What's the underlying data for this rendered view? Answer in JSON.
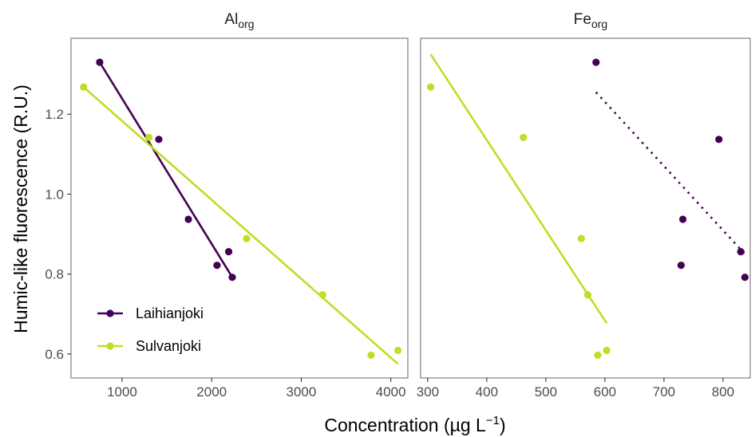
{
  "chart_data": {
    "type": "scatter",
    "y_axis_label": "Humic-like fluorescence (R.U.)",
    "x_axis_label": {
      "main": "Concentration (µg L",
      "superscript": "−1",
      "tail": ")"
    },
    "y_range": [
      0.54,
      1.39
    ],
    "y_ticks": [
      0.6,
      0.8,
      1.0,
      1.2
    ],
    "y_tick_labels": [
      "0.6",
      "0.8",
      "1.0",
      "1.2"
    ],
    "grid": false,
    "legend_placement": "bottom-left of left panel",
    "series_colors": {
      "Laihianjoki": "#440154",
      "Sulvanjoki": "#bddf26"
    },
    "legend": [
      {
        "name": "Laihianjoki",
        "color": "#440154"
      },
      {
        "name": "Sulvanjoki",
        "color": "#bddf26"
      }
    ],
    "panels": [
      {
        "strip_main": "Al",
        "strip_sub": "org",
        "x_range": [
          430,
          4190
        ],
        "x_ticks": [
          1000,
          2000,
          3000,
          4000
        ],
        "x_tick_labels": [
          "1000",
          "2000",
          "3000",
          "4000"
        ],
        "series": [
          {
            "name": "Laihianjoki",
            "points": [
              [
                750,
                1.33
              ],
              [
                1410,
                1.137
              ],
              [
                1740,
                0.937
              ],
              [
                2060,
                0.822
              ],
              [
                2190,
                0.856
              ],
              [
                2230,
                0.792
              ]
            ],
            "fit": {
              "x": [
                750,
                2230
              ],
              "y": [
                1.33,
                0.792
              ],
              "dash": false
            }
          },
          {
            "name": "Sulvanjoki",
            "points": [
              [
                570,
                1.268
              ],
              [
                1300,
                1.142
              ],
              [
                2390,
                0.889
              ],
              [
                3240,
                0.748
              ],
              [
                3780,
                0.597
              ],
              [
                4080,
                0.609
              ]
            ],
            "fit": {
              "x": [
                570,
                4080
              ],
              "y": [
                1.268,
                0.575
              ],
              "dash": false
            }
          }
        ]
      },
      {
        "strip_main": "Fe",
        "strip_sub": "org",
        "x_range": [
          288,
          846
        ],
        "x_ticks": [
          300,
          400,
          500,
          600,
          700,
          800
        ],
        "x_tick_labels": [
          "300",
          "400",
          "500",
          "600",
          "700",
          "800"
        ],
        "series": [
          {
            "name": "Laihianjoki",
            "points": [
              [
                585,
                1.33
              ],
              [
                793,
                1.137
              ],
              [
                732,
                0.937
              ],
              [
                729,
                0.822
              ],
              [
                830,
                0.856
              ],
              [
                837,
                0.792
              ]
            ],
            "fit": {
              "x": [
                585,
                837
              ],
              "y": [
                1.255,
                0.85
              ],
              "dash": true
            }
          },
          {
            "name": "Sulvanjoki",
            "points": [
              [
                305,
                1.268
              ],
              [
                462,
                1.142
              ],
              [
                560,
                0.889
              ],
              [
                571,
                0.748
              ],
              [
                588,
                0.597
              ],
              [
                603,
                0.609
              ]
            ],
            "fit": {
              "x": [
                305,
                603
              ],
              "y": [
                1.35,
                0.677
              ],
              "dash": false
            }
          }
        ]
      }
    ]
  }
}
